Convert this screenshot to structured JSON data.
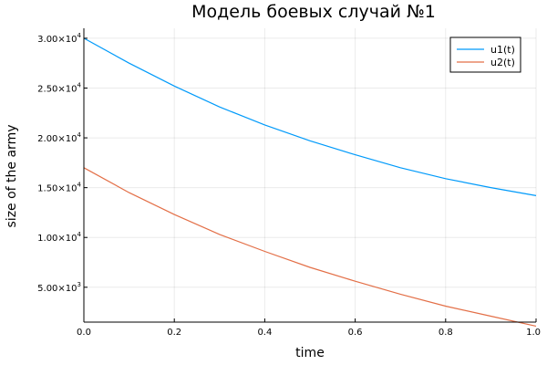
{
  "chart_data": {
    "type": "line",
    "title": "Модель боевых случай №1",
    "xlabel": "time",
    "ylabel": "size of the army",
    "xlim": [
      0,
      1
    ],
    "ylim": [
      1500,
      31000
    ],
    "x_ticks": [
      0.0,
      0.2,
      0.4,
      0.6,
      0.8,
      1.0
    ],
    "x_tick_labels": [
      "0.0",
      "0.2",
      "0.4",
      "0.6",
      "0.8",
      "1.0"
    ],
    "y_ticks": [
      {
        "value": 5000,
        "mantissa": "5.00×10",
        "exponent": "3"
      },
      {
        "value": 10000,
        "mantissa": "1.00×10",
        "exponent": "4"
      },
      {
        "value": 15000,
        "mantissa": "1.50×10",
        "exponent": "4"
      },
      {
        "value": 20000,
        "mantissa": "2.00×10",
        "exponent": "4"
      },
      {
        "value": 25000,
        "mantissa": "2.50×10",
        "exponent": "4"
      },
      {
        "value": 30000,
        "mantissa": "3.00×10",
        "exponent": "4"
      }
    ],
    "grid": true,
    "legend_position": "top-right",
    "series": [
      {
        "name": "u1(t)",
        "color": "#009AFA",
        "x": [
          0.0,
          0.1,
          0.2,
          0.3,
          0.4,
          0.5,
          0.6,
          0.7,
          0.8,
          0.9,
          1.0
        ],
        "y": [
          30000,
          27500,
          25200,
          23100,
          21300,
          19700,
          18300,
          17000,
          15900,
          15000,
          14200
        ]
      },
      {
        "name": "u2(t)",
        "color": "#E36F47",
        "x": [
          0.0,
          0.1,
          0.2,
          0.3,
          0.4,
          0.5,
          0.6,
          0.7,
          0.8,
          0.9,
          1.0
        ],
        "y": [
          17000,
          14500,
          12300,
          10300,
          8600,
          7000,
          5600,
          4300,
          3100,
          2100,
          1100
        ]
      }
    ]
  }
}
